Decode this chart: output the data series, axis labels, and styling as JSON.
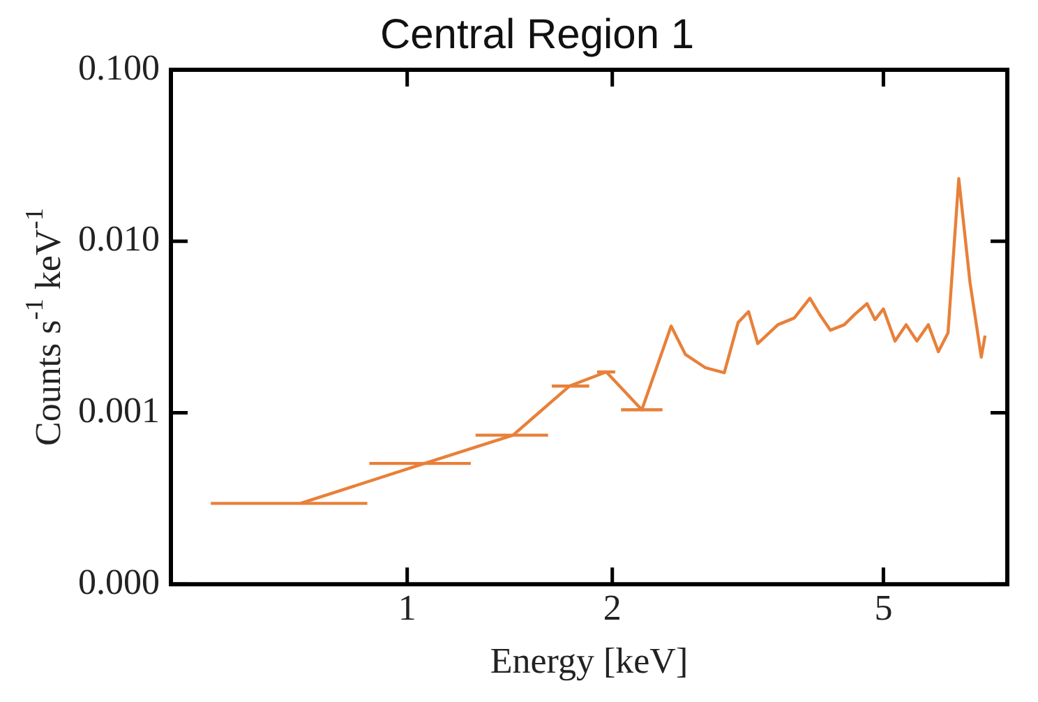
{
  "chart_data": {
    "type": "line",
    "title": "Central Region 1",
    "xlabel": "Energy [keV]",
    "ylabel": "Counts s$^{-1}$ keV$^{-1}$",
    "log": "xy",
    "grid": false,
    "legend": false,
    "marker": "none",
    "line_style": "solid",
    "xlim": [
      0.45,
      7.6
    ],
    "xticks": [
      1,
      2,
      5
    ],
    "ylim": [
      0.0001,
      0.1
    ],
    "yticks": [
      {
        "value": 0.0001,
        "label": "0.000"
      },
      {
        "value": 0.001,
        "label": "0.001"
      },
      {
        "value": 0.01,
        "label": "0.010"
      },
      {
        "value": 0.1,
        "label": "0.100"
      }
    ],
    "series": [
      {
        "color": "#e8803a",
        "x": [
          0.697,
          1.06,
          1.43,
          1.73,
          1.96,
          2.21,
          2.44,
          2.56,
          2.74,
          2.92,
          3.06,
          3.17,
          3.27,
          3.5,
          3.7,
          3.9,
          4.03,
          4.18,
          4.38,
          4.54,
          4.73,
          4.86,
          5.0,
          5.2,
          5.4,
          5.6,
          5.82,
          6.02,
          6.22,
          6.45,
          6.7,
          6.96,
          7.05
        ],
        "values": [
          0.000296,
          0.000506,
          0.00074,
          0.00143,
          0.00173,
          0.00104,
          0.0032,
          0.00219,
          0.00183,
          0.00171,
          0.00336,
          0.00389,
          0.00253,
          0.00326,
          0.00357,
          0.00465,
          0.00375,
          0.00303,
          0.00326,
          0.00375,
          0.00433,
          0.00349,
          0.00403,
          0.00262,
          0.00326,
          0.00262,
          0.00326,
          0.00227,
          0.00292,
          0.0232,
          0.00575,
          0.00211,
          0.00282
        ],
        "xerrors": [
          [
            0.515,
            0.874
          ],
          [
            0.88,
            1.24
          ],
          [
            1.26,
            1.61
          ],
          [
            1.63,
            1.85
          ],
          [
            1.9,
            2.02
          ],
          [
            2.06,
            2.37
          ],
          null,
          null,
          null,
          null,
          null,
          null,
          null,
          null,
          null,
          null,
          null,
          null,
          null,
          null,
          null,
          null,
          null,
          null,
          null,
          null,
          null,
          null,
          null,
          null,
          null,
          null,
          null
        ]
      }
    ]
  }
}
